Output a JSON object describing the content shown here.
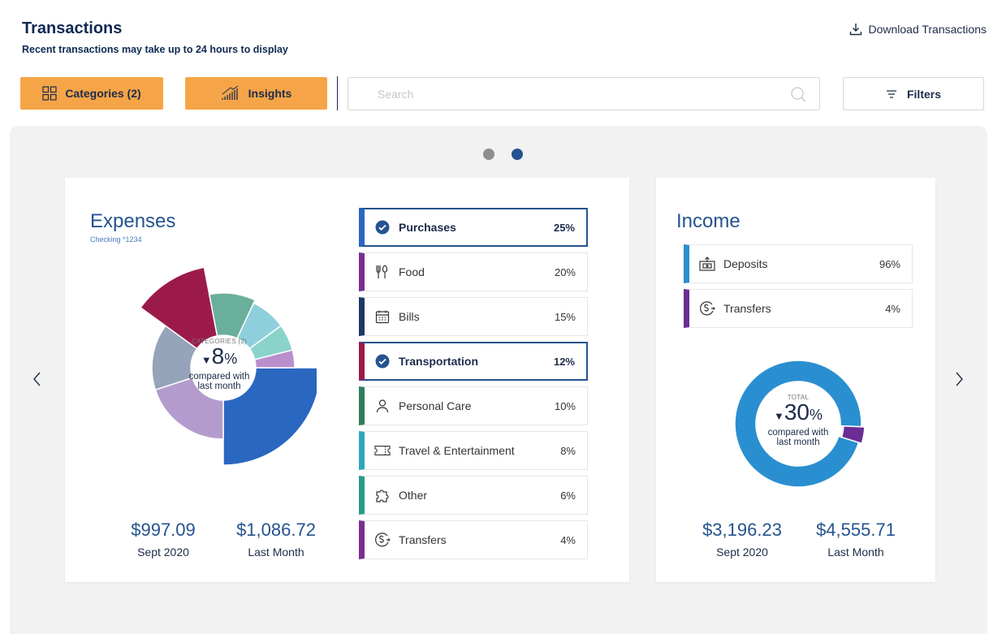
{
  "header": {
    "title": "Transactions",
    "subtitle": "Recent transactions may take up to 24 hours to display",
    "download_label": "Download Transactions"
  },
  "toolbar": {
    "categories_label": "Categories (2)",
    "insights_label": "Insights",
    "search_placeholder": "Search",
    "filters_label": "Filters",
    "accent_color": "#f5a548"
  },
  "carousel": {
    "page_count": 2,
    "active_page": 2
  },
  "expenses": {
    "title": "Expenses",
    "account": "Checking *1234",
    "center_label": "CATEGORIES (2)",
    "center_arrow": "▼",
    "center_value": "8",
    "center_unit": "%",
    "center_text_1": "compared with",
    "center_text_2": "last month",
    "current_amount": "$997.09",
    "current_label": "Sept 2020",
    "previous_amount": "$1,086.72",
    "previous_label": "Last Month",
    "categories": [
      {
        "name": "Purchases",
        "percent": "25%",
        "value": 25,
        "color": "#2a67c0",
        "icon": "check-circle-icon",
        "selected": true
      },
      {
        "name": "Food",
        "percent": "20%",
        "value": 20,
        "color": "#7a2e91",
        "icon": "utensils-icon",
        "selected": false
      },
      {
        "name": "Bills",
        "percent": "15%",
        "value": 15,
        "color": "#1f3766",
        "icon": "calendar-icon",
        "selected": false
      },
      {
        "name": "Transportation",
        "percent": "12%",
        "value": 12,
        "color": "#9c1a4a",
        "icon": "check-circle-icon",
        "selected": true
      },
      {
        "name": "Personal Care",
        "percent": "10%",
        "value": 10,
        "color": "#2e7d5b",
        "icon": "person-icon",
        "selected": false
      },
      {
        "name": "Travel & Entertainment",
        "percent": "8%",
        "value": 8,
        "color": "#2ea7bd",
        "icon": "ticket-icon",
        "selected": false
      },
      {
        "name": "Other",
        "percent": "6%",
        "value": 6,
        "color": "#2a9a8a",
        "icon": "puzzle-icon",
        "selected": false
      },
      {
        "name": "Transfers",
        "percent": "4%",
        "value": 4,
        "color": "#7a2e91",
        "icon": "dollar-transfer-icon",
        "selected": false
      }
    ],
    "donut_colors": [
      "#2a67c0",
      "#b39ccd",
      "#95a4ba",
      "#9c1a4a",
      "#6aaf9a",
      "#8dd0dc",
      "#8ad3cb",
      "#b98fce"
    ]
  },
  "income": {
    "title": "Income",
    "center_label": "TOTAL",
    "center_arrow": "▼",
    "center_value": "30",
    "center_unit": "%",
    "center_text_1": "compared with",
    "center_text_2": "last month",
    "current_amount": "$3,196.23",
    "current_label": "Sept 2020",
    "previous_amount": "$4,555.71",
    "previous_label": "Last Month",
    "categories": [
      {
        "name": "Deposits",
        "percent": "96%",
        "value": 96,
        "color": "#2a8fd0",
        "icon": "deposit-icon"
      },
      {
        "name": "Transfers",
        "percent": "4%",
        "value": 4,
        "color": "#6b2d94",
        "icon": "dollar-transfer-icon"
      }
    ]
  }
}
